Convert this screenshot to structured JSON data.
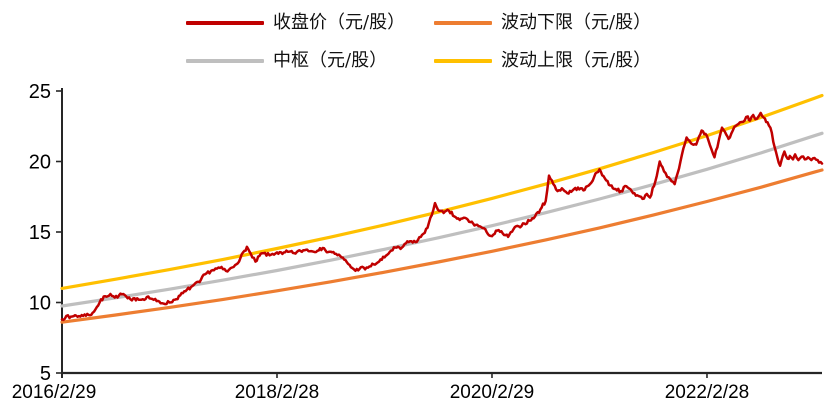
{
  "chart_data": {
    "type": "line",
    "title": "",
    "x_axis": {
      "kind": "time",
      "tick_labels": [
        "2016/2/29",
        "2018/2/28",
        "2020/2/29",
        "2022/2/28"
      ],
      "tick_positions_years": [
        0,
        2,
        4,
        6
      ],
      "range_years": [
        0,
        7.07
      ]
    },
    "y_axis": {
      "tick_labels": [
        "5",
        "10",
        "15",
        "20",
        "25"
      ],
      "tick_values": [
        5,
        10,
        15,
        20,
        25
      ],
      "range": [
        5,
        25
      ],
      "grid": false
    },
    "legend_position": "top",
    "axis_color": "#262626",
    "draw_order": [
      1,
      2,
      3,
      0
    ],
    "series": [
      {
        "name": "收盘价（元/股）",
        "color": "#C00000",
        "role": "close-price",
        "style": "noisy",
        "width": 2.5,
        "points": [
          [
            0.0,
            8.8
          ],
          [
            0.04,
            9.05
          ],
          [
            0.07,
            8.9
          ],
          [
            0.12,
            9.1
          ],
          [
            0.17,
            9.0
          ],
          [
            0.21,
            9.15
          ],
          [
            0.26,
            9.1
          ],
          [
            0.31,
            9.5
          ],
          [
            0.35,
            10.0
          ],
          [
            0.4,
            10.45
          ],
          [
            0.45,
            10.6
          ],
          [
            0.49,
            10.35
          ],
          [
            0.53,
            10.5
          ],
          [
            0.57,
            10.6
          ],
          [
            0.61,
            10.3
          ],
          [
            0.65,
            10.15
          ],
          [
            0.7,
            10.3
          ],
          [
            0.74,
            10.2
          ],
          [
            0.79,
            10.4
          ],
          [
            0.84,
            10.25
          ],
          [
            0.88,
            10.1
          ],
          [
            0.93,
            9.95
          ],
          [
            1.0,
            10.0
          ],
          [
            1.05,
            10.2
          ],
          [
            1.1,
            10.5
          ],
          [
            1.15,
            10.8
          ],
          [
            1.2,
            11.1
          ],
          [
            1.28,
            11.45
          ],
          [
            1.33,
            12.0
          ],
          [
            1.4,
            12.3
          ],
          [
            1.47,
            12.45
          ],
          [
            1.54,
            12.2
          ],
          [
            1.61,
            12.65
          ],
          [
            1.66,
            13.15
          ],
          [
            1.72,
            13.95
          ],
          [
            1.77,
            13.2
          ],
          [
            1.8,
            12.9
          ],
          [
            1.86,
            13.5
          ],
          [
            1.93,
            13.35
          ],
          [
            2.0,
            13.55
          ],
          [
            2.05,
            13.45
          ],
          [
            2.1,
            13.6
          ],
          [
            2.16,
            13.5
          ],
          [
            2.22,
            13.65
          ],
          [
            2.28,
            13.75
          ],
          [
            2.34,
            13.6
          ],
          [
            2.4,
            13.85
          ],
          [
            2.45,
            13.7
          ],
          [
            2.5,
            13.6
          ],
          [
            2.55,
            13.45
          ],
          [
            2.6,
            13.2
          ],
          [
            2.65,
            12.85
          ],
          [
            2.7,
            12.45
          ],
          [
            2.73,
            12.25
          ],
          [
            2.78,
            12.5
          ],
          [
            2.82,
            12.35
          ],
          [
            2.86,
            12.55
          ],
          [
            2.9,
            12.7
          ],
          [
            2.95,
            12.9
          ],
          [
            3.0,
            13.2
          ],
          [
            3.05,
            13.6
          ],
          [
            3.1,
            13.9
          ],
          [
            3.15,
            13.8
          ],
          [
            3.2,
            14.2
          ],
          [
            3.25,
            14.35
          ],
          [
            3.3,
            14.3
          ],
          [
            3.35,
            14.8
          ],
          [
            3.4,
            15.3
          ],
          [
            3.44,
            16.2
          ],
          [
            3.47,
            17.05
          ],
          [
            3.51,
            16.5
          ],
          [
            3.55,
            16.35
          ],
          [
            3.6,
            16.5
          ],
          [
            3.65,
            16.1
          ],
          [
            3.7,
            15.85
          ],
          [
            3.75,
            16.0
          ],
          [
            3.8,
            15.7
          ],
          [
            3.85,
            15.5
          ],
          [
            3.9,
            15.35
          ],
          [
            3.95,
            15.0
          ],
          [
            4.0,
            14.7
          ],
          [
            4.05,
            15.1
          ],
          [
            4.1,
            14.9
          ],
          [
            4.15,
            14.65
          ],
          [
            4.2,
            15.2
          ],
          [
            4.25,
            15.4
          ],
          [
            4.3,
            15.6
          ],
          [
            4.35,
            15.8
          ],
          [
            4.4,
            16.1
          ],
          [
            4.45,
            16.6
          ],
          [
            4.5,
            17.2
          ],
          [
            4.53,
            19.0
          ],
          [
            4.57,
            18.4
          ],
          [
            4.61,
            17.9
          ],
          [
            4.65,
            18.1
          ],
          [
            4.7,
            17.75
          ],
          [
            4.75,
            17.95
          ],
          [
            4.8,
            18.15
          ],
          [
            4.85,
            17.95
          ],
          [
            4.9,
            18.3
          ],
          [
            4.95,
            18.9
          ],
          [
            5.0,
            19.45
          ],
          [
            5.05,
            18.8
          ],
          [
            5.1,
            18.3
          ],
          [
            5.15,
            18.05
          ],
          [
            5.2,
            17.9
          ],
          [
            5.25,
            18.25
          ],
          [
            5.3,
            17.9
          ],
          [
            5.35,
            17.6
          ],
          [
            5.4,
            17.35
          ],
          [
            5.44,
            17.7
          ],
          [
            5.47,
            17.45
          ],
          [
            5.52,
            18.6
          ],
          [
            5.56,
            20.0
          ],
          [
            5.6,
            19.3
          ],
          [
            5.63,
            18.9
          ],
          [
            5.67,
            18.6
          ],
          [
            5.7,
            18.4
          ],
          [
            5.74,
            19.5
          ],
          [
            5.78,
            20.9
          ],
          [
            5.81,
            21.7
          ],
          [
            5.85,
            21.3
          ],
          [
            5.9,
            21.2
          ],
          [
            5.95,
            22.2
          ],
          [
            6.0,
            21.8
          ],
          [
            6.04,
            20.9
          ],
          [
            6.07,
            20.3
          ],
          [
            6.11,
            21.5
          ],
          [
            6.14,
            22.4
          ],
          [
            6.18,
            21.9
          ],
          [
            6.2,
            21.6
          ],
          [
            6.24,
            22.2
          ],
          [
            6.28,
            22.6
          ],
          [
            6.32,
            22.8
          ],
          [
            6.35,
            22.9
          ],
          [
            6.38,
            23.2
          ],
          [
            6.4,
            22.9
          ],
          [
            6.43,
            23.3
          ],
          [
            6.45,
            23.0
          ],
          [
            6.48,
            23.2
          ],
          [
            6.5,
            23.45
          ],
          [
            6.53,
            23.1
          ],
          [
            6.55,
            22.8
          ],
          [
            6.59,
            22.4
          ],
          [
            6.63,
            21.0
          ],
          [
            6.68,
            19.7
          ],
          [
            6.72,
            20.7
          ],
          [
            6.75,
            20.2
          ],
          [
            6.77,
            20.4
          ],
          [
            6.8,
            20.15
          ],
          [
            6.82,
            20.5
          ],
          [
            6.85,
            20.1
          ],
          [
            6.88,
            20.35
          ],
          [
            6.91,
            20.15
          ],
          [
            6.94,
            20.3
          ],
          [
            6.97,
            20.1
          ],
          [
            7.0,
            20.25
          ],
          [
            7.03,
            20.1
          ],
          [
            7.07,
            19.85
          ]
        ]
      },
      {
        "name": "波动下限（元/股）",
        "color": "#ED7D31",
        "role": "lower-band",
        "style": "smooth",
        "width": 3.2,
        "points": [
          [
            0.0,
            8.6
          ],
          [
            0.5,
            9.11
          ],
          [
            1.0,
            9.65
          ],
          [
            1.5,
            10.22
          ],
          [
            2.0,
            10.83
          ],
          [
            2.5,
            11.47
          ],
          [
            3.0,
            12.15
          ],
          [
            3.5,
            12.87
          ],
          [
            4.0,
            13.63
          ],
          [
            4.5,
            14.44
          ],
          [
            5.0,
            15.29
          ],
          [
            5.5,
            16.2
          ],
          [
            6.0,
            17.16
          ],
          [
            6.5,
            18.17
          ],
          [
            7.0,
            19.25
          ],
          [
            7.07,
            19.4
          ]
        ]
      },
      {
        "name": "中枢（元/股）",
        "color": "#BFBFBF",
        "role": "center-line",
        "style": "smooth",
        "width": 3.2,
        "points": [
          [
            0.0,
            9.75
          ],
          [
            0.5,
            10.33
          ],
          [
            1.0,
            10.94
          ],
          [
            1.5,
            11.59
          ],
          [
            2.0,
            12.27
          ],
          [
            2.5,
            13.0
          ],
          [
            3.0,
            13.77
          ],
          [
            3.5,
            14.59
          ],
          [
            4.0,
            15.45
          ],
          [
            4.5,
            16.37
          ],
          [
            5.0,
            17.34
          ],
          [
            5.5,
            18.36
          ],
          [
            6.0,
            19.45
          ],
          [
            6.5,
            20.6
          ],
          [
            7.0,
            21.83
          ],
          [
            7.07,
            22.0
          ]
        ]
      },
      {
        "name": "波动上限（元/股）",
        "color": "#FFC000",
        "role": "upper-band",
        "style": "smooth",
        "width": 3.2,
        "points": [
          [
            0.0,
            11.0
          ],
          [
            0.5,
            11.65
          ],
          [
            1.0,
            12.33
          ],
          [
            1.5,
            13.06
          ],
          [
            2.0,
            13.83
          ],
          [
            2.5,
            14.64
          ],
          [
            3.0,
            15.5
          ],
          [
            3.5,
            16.41
          ],
          [
            4.0,
            17.38
          ],
          [
            4.5,
            18.4
          ],
          [
            5.0,
            19.48
          ],
          [
            5.5,
            20.63
          ],
          [
            6.0,
            21.84
          ],
          [
            6.5,
            23.12
          ],
          [
            7.0,
            24.48
          ],
          [
            7.07,
            24.68
          ]
        ]
      }
    ]
  }
}
